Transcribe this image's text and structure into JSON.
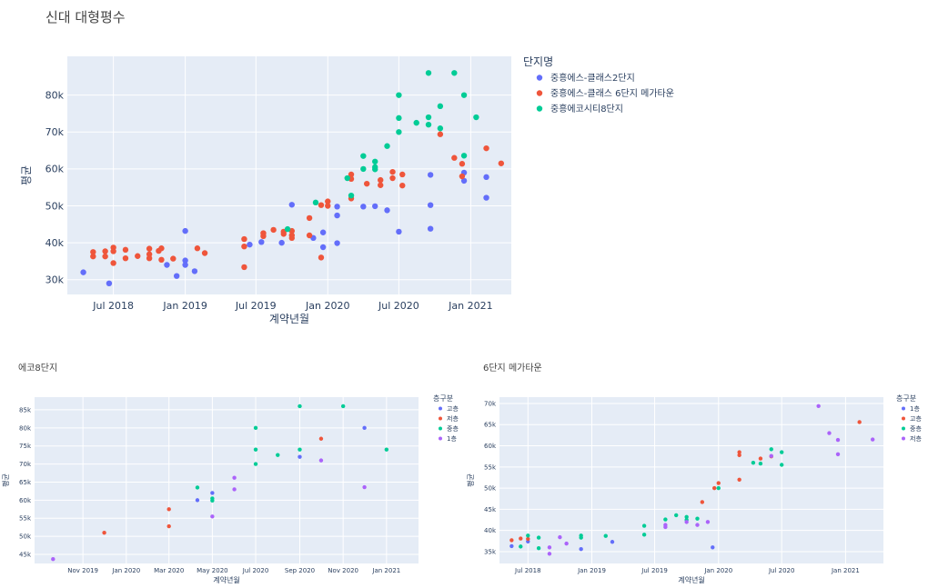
{
  "main": {
    "title": "신대 대형평수"
  },
  "chart_data": [
    {
      "type": "scatter",
      "title": "신대 대형평수",
      "xlabel": "계약년월",
      "ylabel": "평균",
      "xlim": [
        "2018-03-05",
        "2021-04-15"
      ],
      "ylim": [
        26000,
        90500
      ],
      "x_ticks": [
        [
          "2018-07-01",
          "Jul 2018"
        ],
        [
          "2019-01-01",
          "Jan 2019"
        ],
        [
          "2019-07-01",
          "Jul 2019"
        ],
        [
          "2020-01-01",
          "Jan 2020"
        ],
        [
          "2020-07-01",
          "Jul 2020"
        ],
        [
          "2021-01-01",
          "Jan 2021"
        ]
      ],
      "y_ticks": [
        [
          30000,
          "30k"
        ],
        [
          40000,
          "40k"
        ],
        [
          50000,
          "50k"
        ],
        [
          60000,
          "60k"
        ],
        [
          70000,
          "70k"
        ],
        [
          80000,
          "80k"
        ]
      ],
      "legend_title": "단지명",
      "legend_position": "right",
      "series": [
        {
          "name": "중흥에스-클래스2단지",
          "color": "#636efa",
          "points": [
            [
              "2018-04-15",
              32000
            ],
            [
              "2018-06-20",
              29000
            ],
            [
              "2018-11-15",
              34000
            ],
            [
              "2018-12-10",
              31000
            ],
            [
              "2019-01-01",
              43200
            ],
            [
              "2019-01-01",
              35200
            ],
            [
              "2019-01-01",
              34000
            ],
            [
              "2019-01-25",
              32300
            ],
            [
              "2019-06-15",
              39500
            ],
            [
              "2019-07-15",
              40200
            ],
            [
              "2019-09-05",
              40000
            ],
            [
              "2019-10-01",
              50300
            ],
            [
              "2019-11-25",
              41300
            ],
            [
              "2019-12-20",
              38800
            ],
            [
              "2019-12-20",
              42800
            ],
            [
              "2020-01-25",
              39900
            ],
            [
              "2020-01-25",
              47400
            ],
            [
              "2020-01-25",
              49800
            ],
            [
              "2020-04-01",
              49800
            ],
            [
              "2020-05-01",
              49900
            ],
            [
              "2020-06-01",
              48800
            ],
            [
              "2020-07-01",
              43000
            ],
            [
              "2020-09-20",
              43800
            ],
            [
              "2020-09-20",
              50200
            ],
            [
              "2020-09-20",
              58400
            ],
            [
              "2020-12-15",
              59000
            ],
            [
              "2020-12-15",
              56800
            ],
            [
              "2021-02-10",
              57800
            ],
            [
              "2021-02-10",
              52200
            ]
          ]
        },
        {
          "name": "중흥에스-클래스 6단지 메가타운",
          "color": "#ef553b",
          "points": [
            [
              "2018-05-10",
              37500
            ],
            [
              "2018-05-10",
              36300
            ],
            [
              "2018-06-10",
              36300
            ],
            [
              "2018-06-10",
              37700
            ],
            [
              "2018-07-01",
              38700
            ],
            [
              "2018-07-01",
              37700
            ],
            [
              "2018-07-01",
              34500
            ],
            [
              "2018-08-01",
              38100
            ],
            [
              "2018-08-01",
              35800
            ],
            [
              "2018-09-01",
              36400
            ],
            [
              "2018-10-01",
              38400
            ],
            [
              "2018-10-01",
              36900
            ],
            [
              "2018-10-01",
              35800
            ],
            [
              "2018-10-25",
              37800
            ],
            [
              "2018-11-01",
              38500
            ],
            [
              "2018-11-01",
              35400
            ],
            [
              "2018-12-01",
              35700
            ],
            [
              "2019-02-01",
              38500
            ],
            [
              "2019-02-20",
              37200
            ],
            [
              "2019-06-01",
              39000
            ],
            [
              "2019-06-01",
              33400
            ],
            [
              "2019-06-01",
              41000
            ],
            [
              "2019-07-20",
              42600
            ],
            [
              "2019-07-20",
              41800
            ],
            [
              "2019-08-15",
              43500
            ],
            [
              "2019-09-10",
              42400
            ],
            [
              "2019-09-10",
              43000
            ],
            [
              "2019-10-01",
              42000
            ],
            [
              "2019-10-01",
              43200
            ],
            [
              "2019-10-01",
              41300
            ],
            [
              "2019-11-15",
              42000
            ],
            [
              "2019-11-15",
              46700
            ],
            [
              "2019-12-15",
              36000
            ],
            [
              "2019-12-15",
              50200
            ],
            [
              "2020-01-01",
              51200
            ],
            [
              "2020-01-01",
              50000
            ],
            [
              "2020-03-01",
              58500
            ],
            [
              "2020-03-01",
              57300
            ],
            [
              "2020-03-01",
              52000
            ],
            [
              "2020-04-10",
              56000
            ],
            [
              "2020-05-15",
              57000
            ],
            [
              "2020-05-15",
              55600
            ],
            [
              "2020-06-15",
              59200
            ],
            [
              "2020-06-15",
              57500
            ],
            [
              "2020-07-10",
              58500
            ],
            [
              "2020-07-10",
              55500
            ],
            [
              "2020-10-15",
              69400
            ],
            [
              "2020-11-20",
              63000
            ],
            [
              "2020-12-10",
              61400
            ],
            [
              "2020-12-10",
              58000
            ],
            [
              "2021-02-10",
              65600
            ],
            [
              "2021-03-20",
              61500
            ]
          ]
        },
        {
          "name": "중흥에코시티8단지",
          "color": "#00cc96",
          "points": [
            [
              "2019-09-20",
              43700
            ],
            [
              "2019-12-01",
              50900
            ],
            [
              "2020-02-20",
              57500
            ],
            [
              "2020-03-01",
              52800
            ],
            [
              "2020-04-01",
              63500
            ],
            [
              "2020-04-01",
              60000
            ],
            [
              "2020-05-01",
              62000
            ],
            [
              "2020-05-01",
              60500
            ],
            [
              "2020-05-01",
              59900
            ],
            [
              "2020-06-01",
              66200
            ],
            [
              "2020-07-01",
              80000
            ],
            [
              "2020-07-01",
              73800
            ],
            [
              "2020-07-01",
              70000
            ],
            [
              "2020-08-15",
              72500
            ],
            [
              "2020-09-15",
              86000
            ],
            [
              "2020-09-15",
              74000
            ],
            [
              "2020-09-15",
              72000
            ],
            [
              "2020-10-15",
              77000
            ],
            [
              "2020-10-15",
              71000
            ],
            [
              "2020-11-20",
              86000
            ],
            [
              "2020-12-15",
              80000
            ],
            [
              "2020-12-15",
              63600
            ],
            [
              "2021-01-15",
              74000
            ]
          ]
        }
      ]
    },
    {
      "type": "scatter",
      "title": "에코8단지",
      "xlabel": "계약년월",
      "ylabel": "평균",
      "xlim": [
        "2019-08-25",
        "2021-02-15"
      ],
      "ylim": [
        42500,
        88500
      ],
      "x_ticks": [
        [
          "2019-11-01",
          "Nov 2019"
        ],
        [
          "2020-01-01",
          "Jan 2020"
        ],
        [
          "2020-03-01",
          "Mar 2020"
        ],
        [
          "2020-05-01",
          "May 2020"
        ],
        [
          "2020-07-01",
          "Jul 2020"
        ],
        [
          "2020-09-01",
          "Sep 2020"
        ],
        [
          "2020-11-01",
          "Nov 2020"
        ],
        [
          "2021-01-01",
          "Jan 2021"
        ]
      ],
      "y_ticks": [
        [
          45000,
          "45k"
        ],
        [
          50000,
          "50k"
        ],
        [
          55000,
          "55k"
        ],
        [
          60000,
          "60k"
        ],
        [
          65000,
          "65k"
        ],
        [
          70000,
          "70k"
        ],
        [
          75000,
          "75k"
        ],
        [
          80000,
          "80k"
        ],
        [
          85000,
          "85k"
        ]
      ],
      "legend_title": "층구분",
      "legend_position": "right",
      "series": [
        {
          "name": "고층",
          "color": "#636efa",
          "points": [
            [
              "2020-04-10",
              60000
            ],
            [
              "2020-05-01",
              62000
            ],
            [
              "2020-09-01",
              72000
            ],
            [
              "2020-12-01",
              80000
            ]
          ]
        },
        {
          "name": "저층",
          "color": "#ef553b",
          "points": [
            [
              "2019-12-01",
              51000
            ],
            [
              "2020-03-01",
              57500
            ],
            [
              "2020-03-01",
              52800
            ],
            [
              "2020-10-01",
              77000
            ]
          ]
        },
        {
          "name": "중층",
          "color": "#00cc96",
          "points": [
            [
              "2020-04-10",
              63500
            ],
            [
              "2020-05-01",
              60500
            ],
            [
              "2020-05-01",
              59900
            ],
            [
              "2020-07-01",
              80000
            ],
            [
              "2020-07-01",
              74000
            ],
            [
              "2020-07-01",
              70000
            ],
            [
              "2020-08-01",
              72500
            ],
            [
              "2020-09-01",
              86000
            ],
            [
              "2020-09-01",
              74000
            ],
            [
              "2020-11-01",
              86000
            ],
            [
              "2021-01-01",
              74000
            ]
          ]
        },
        {
          "name": "1층",
          "color": "#ab63fa",
          "points": [
            [
              "2019-09-20",
              43700
            ],
            [
              "2020-05-01",
              55500
            ],
            [
              "2020-06-01",
              66200
            ],
            [
              "2020-06-01",
              63000
            ],
            [
              "2020-10-01",
              71000
            ],
            [
              "2020-12-01",
              63600
            ]
          ]
        }
      ]
    },
    {
      "type": "scatter",
      "title": "6단지 메가타운",
      "xlabel": "계약년월",
      "ylabel": "평균",
      "xlim": [
        "2018-04-10",
        "2021-04-20"
      ],
      "ylim": [
        32200,
        71500
      ],
      "x_ticks": [
        [
          "2018-07-01",
          "Jul 2018"
        ],
        [
          "2019-01-01",
          "Jan 2019"
        ],
        [
          "2019-07-01",
          "Jul 2019"
        ],
        [
          "2020-01-01",
          "Jan 2020"
        ],
        [
          "2020-07-01",
          "Jul 2020"
        ],
        [
          "2021-01-01",
          "Jan 2021"
        ]
      ],
      "y_ticks": [
        [
          35000,
          "35k"
        ],
        [
          40000,
          "40k"
        ],
        [
          45000,
          "45k"
        ],
        [
          50000,
          "50k"
        ],
        [
          55000,
          "55k"
        ],
        [
          60000,
          "60k"
        ],
        [
          65000,
          "65k"
        ],
        [
          70000,
          "70k"
        ]
      ],
      "legend_title": "층구분",
      "legend_position": "right",
      "series": [
        {
          "name": "1층",
          "color": "#636efa",
          "points": [
            [
              "2018-05-15",
              36300
            ],
            [
              "2018-07-01",
              37400
            ],
            [
              "2018-12-01",
              35600
            ],
            [
              "2019-03-01",
              37300
            ],
            [
              "2019-12-15",
              36000
            ]
          ]
        },
        {
          "name": "고층",
          "color": "#ef553b",
          "points": [
            [
              "2018-05-15",
              37700
            ],
            [
              "2018-06-10",
              38100
            ],
            [
              "2018-07-01",
              38000
            ],
            [
              "2019-11-15",
              46700
            ],
            [
              "2019-12-20",
              50000
            ],
            [
              "2020-01-01",
              51200
            ],
            [
              "2020-03-01",
              58500
            ],
            [
              "2020-03-01",
              57800
            ],
            [
              "2020-03-01",
              52000
            ],
            [
              "2020-05-01",
              57000
            ],
            [
              "2020-06-01",
              57500
            ],
            [
              "2021-02-10",
              65600
            ]
          ]
        },
        {
          "name": "중층",
          "color": "#00cc96",
          "points": [
            [
              "2018-06-10",
              36200
            ],
            [
              "2018-07-01",
              38800
            ],
            [
              "2018-08-01",
              38300
            ],
            [
              "2018-08-01",
              35800
            ],
            [
              "2018-12-01",
              38800
            ],
            [
              "2018-12-01",
              38300
            ],
            [
              "2019-02-10",
              38700
            ],
            [
              "2019-06-01",
              41100
            ],
            [
              "2019-06-01",
              39000
            ],
            [
              "2019-08-01",
              42600
            ],
            [
              "2019-09-01",
              43600
            ],
            [
              "2019-10-01",
              43200
            ],
            [
              "2019-10-01",
              42500
            ],
            [
              "2019-11-01",
              42800
            ],
            [
              "2020-01-01",
              50000
            ],
            [
              "2020-04-10",
              56000
            ],
            [
              "2020-05-01",
              55800
            ],
            [
              "2020-06-01",
              59200
            ],
            [
              "2020-07-01",
              58500
            ],
            [
              "2020-07-01",
              55500
            ]
          ]
        },
        {
          "name": "저층",
          "color": "#ab63fa",
          "points": [
            [
              "2018-09-01",
              36000
            ],
            [
              "2018-09-01",
              34500
            ],
            [
              "2018-10-01",
              38400
            ],
            [
              "2018-10-20",
              36900
            ],
            [
              "2019-08-01",
              41300
            ],
            [
              "2019-08-01",
              40800
            ],
            [
              "2019-10-01",
              42000
            ],
            [
              "2019-11-01",
              41300
            ],
            [
              "2019-12-01",
              42000
            ],
            [
              "2020-06-01",
              57600
            ],
            [
              "2020-10-15",
              69400
            ],
            [
              "2020-11-15",
              63000
            ],
            [
              "2020-12-10",
              61400
            ],
            [
              "2020-12-10",
              58000
            ],
            [
              "2021-03-20",
              61500
            ]
          ]
        }
      ]
    }
  ]
}
